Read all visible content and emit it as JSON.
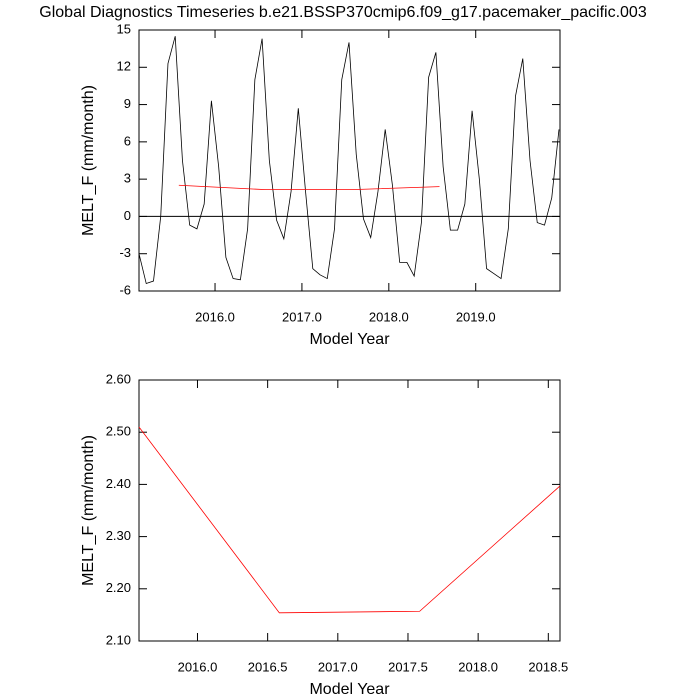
{
  "chart_data": [
    {
      "type": "line",
      "title": "Global Diagnostics Timeseries b.e21.BSSP370cmip6.f09_g17.pacemaker_pacific.003",
      "xlabel": "Model Year",
      "ylabel": "MELT_F (mm/month)",
      "xlim": [
        2015.125,
        2019.97
      ],
      "xticks": [
        {
          "value": 2016,
          "label": "2016.0"
        },
        {
          "value": 2017,
          "label": "2017.0"
        },
        {
          "value": 2018,
          "label": "2018.0"
        },
        {
          "value": 2019,
          "label": "2019.0"
        }
      ],
      "ylim": [
        -6,
        15
      ],
      "yticks": [
        -6,
        -3,
        0,
        3,
        6,
        9,
        12,
        15
      ],
      "hline": 0,
      "series": [
        {
          "color": "#000000",
          "x": [
            2015.125,
            2015.2083,
            2015.2917,
            2015.375,
            2015.4583,
            2015.5417,
            2015.625,
            2015.7083,
            2015.7917,
            2015.875,
            2015.9583,
            2016.0417,
            2016.125,
            2016.2083,
            2016.2917,
            2016.375,
            2016.4583,
            2016.5417,
            2016.625,
            2016.7083,
            2016.7917,
            2016.875,
            2016.9583,
            2017.0417,
            2017.125,
            2017.2083,
            2017.2917,
            2017.375,
            2017.4583,
            2017.5417,
            2017.625,
            2017.7083,
            2017.7917,
            2017.875,
            2017.9583,
            2018.0417,
            2018.125,
            2018.2083,
            2018.2917,
            2018.375,
            2018.4583,
            2018.5417,
            2018.625,
            2018.7083,
            2018.7917,
            2018.875,
            2018.9583,
            2019.0417,
            2019.125,
            2019.2083,
            2019.2917,
            2019.375,
            2019.4583,
            2019.5417,
            2019.625,
            2019.7083,
            2019.7917,
            2019.875,
            2019.9583
          ],
          "values": [
            -3.0,
            -5.4,
            -5.2,
            0.0,
            12.3,
            14.5,
            4.5,
            -0.7,
            -1.0,
            1.0,
            9.3,
            4.0,
            -3.3,
            -5.0,
            -5.1,
            -1.0,
            11.0,
            14.3,
            4.5,
            -0.3,
            -1.8,
            2.0,
            8.7,
            2.0,
            -4.2,
            -4.7,
            -5.0,
            -1.0,
            11.0,
            14.0,
            5.0,
            -0.2,
            -1.7,
            2.0,
            7.0,
            2.5,
            -3.7,
            -3.7,
            -4.8,
            -0.5,
            11.2,
            13.2,
            4.0,
            -1.1,
            -1.1,
            1.0,
            8.5,
            3.0,
            -4.2,
            -4.6,
            -5.0,
            -1.0,
            9.7,
            12.7,
            4.5,
            -0.5,
            -0.7,
            1.5,
            7.0
          ]
        },
        {
          "color": "#ff0000",
          "x": [
            2015.5833,
            2016.5833,
            2017.5833,
            2018.5833
          ],
          "values": [
            2.51,
            2.154,
            2.157,
            2.397
          ]
        }
      ]
    },
    {
      "type": "line",
      "xlabel": "Model Year",
      "ylabel": "MELT_F (mm/month)",
      "xlim": [
        2015.5833,
        2018.5833
      ],
      "xticks": [
        {
          "value": 2016,
          "label": "2016.0"
        },
        {
          "value": 2016.5,
          "label": "2016.5"
        },
        {
          "value": 2017,
          "label": "2017.0"
        },
        {
          "value": 2017.5,
          "label": "2017.5"
        },
        {
          "value": 2018,
          "label": "2018.0"
        },
        {
          "value": 2018.5,
          "label": "2018.5"
        }
      ],
      "ylim": [
        2.1,
        2.6
      ],
      "yticks": [
        {
          "value": 2.1,
          "label": "2.10"
        },
        {
          "value": 2.2,
          "label": "2.20"
        },
        {
          "value": 2.3,
          "label": "2.30"
        },
        {
          "value": 2.4,
          "label": "2.40"
        },
        {
          "value": 2.5,
          "label": "2.50"
        },
        {
          "value": 2.6,
          "label": "2.60"
        }
      ],
      "series": [
        {
          "color": "#ff0000",
          "x": [
            2015.5833,
            2016.5833,
            2017.5833,
            2018.5833
          ],
          "values": [
            2.51,
            2.154,
            2.157,
            2.397
          ]
        }
      ]
    }
  ]
}
